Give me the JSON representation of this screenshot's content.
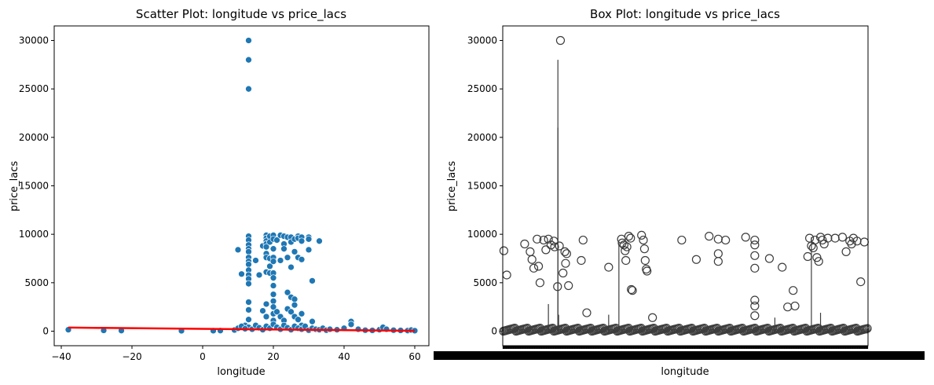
{
  "chart_data": [
    {
      "type": "scatter",
      "title": "Scatter Plot: longitude vs price_lacs",
      "xlabel": "longitude",
      "ylabel": "price_lacs",
      "xlim": [
        -42,
        64
      ],
      "ylim": [
        -1500,
        31500
      ],
      "xticks": [
        -40,
        -20,
        0,
        20,
        40,
        60
      ],
      "yticks": [
        0,
        5000,
        10000,
        15000,
        20000,
        25000,
        30000
      ],
      "grid": false,
      "point_color": "#1f77b4",
      "points": [
        [
          -38,
          150
        ],
        [
          -28,
          80
        ],
        [
          -23,
          60
        ],
        [
          -6,
          40
        ],
        [
          3,
          50
        ],
        [
          5,
          60
        ],
        [
          13,
          30000
        ],
        [
          13,
          28000
        ],
        [
          13,
          25000
        ],
        [
          10,
          8400
        ],
        [
          11,
          5900
        ],
        [
          12,
          600
        ],
        [
          13,
          9800
        ],
        [
          13,
          9400
        ],
        [
          13,
          8900
        ],
        [
          13,
          8500
        ],
        [
          13,
          8200
        ],
        [
          13,
          7600
        ],
        [
          13,
          7200
        ],
        [
          13,
          6900
        ],
        [
          13,
          6300
        ],
        [
          13,
          5800
        ],
        [
          13,
          5400
        ],
        [
          13,
          4900
        ],
        [
          13,
          3000
        ],
        [
          13,
          2200
        ],
        [
          13,
          1200
        ],
        [
          13,
          400
        ],
        [
          15,
          7300
        ],
        [
          16,
          5800
        ],
        [
          17,
          8800
        ],
        [
          17,
          2100
        ],
        [
          18,
          9900
        ],
        [
          18,
          9600
        ],
        [
          18,
          9300
        ],
        [
          18,
          9000
        ],
        [
          18,
          8700
        ],
        [
          18,
          8000
        ],
        [
          18,
          7600
        ],
        [
          18,
          6100
        ],
        [
          18,
          2800
        ],
        [
          18,
          1500
        ],
        [
          19,
          9800
        ],
        [
          19,
          9200
        ],
        [
          19,
          7500
        ],
        [
          19,
          6700
        ],
        [
          19,
          6000
        ],
        [
          20,
          9900
        ],
        [
          20,
          9500
        ],
        [
          20,
          8500
        ],
        [
          20,
          7600
        ],
        [
          20,
          7200
        ],
        [
          20,
          6000
        ],
        [
          20,
          5500
        ],
        [
          20,
          4700
        ],
        [
          20,
          3800
        ],
        [
          20,
          3100
        ],
        [
          20,
          2500
        ],
        [
          20,
          1800
        ],
        [
          20,
          1100
        ],
        [
          21,
          9400
        ],
        [
          21,
          2000
        ],
        [
          22,
          9900
        ],
        [
          22,
          7300
        ],
        [
          22,
          1500
        ],
        [
          23,
          9800
        ],
        [
          23,
          9000
        ],
        [
          23,
          8500
        ],
        [
          23,
          1100
        ],
        [
          24,
          9700
        ],
        [
          24,
          7600
        ],
        [
          24,
          4000
        ],
        [
          24,
          2300
        ],
        [
          25,
          9700
        ],
        [
          25,
          9200
        ],
        [
          25,
          6600
        ],
        [
          25,
          3500
        ],
        [
          25,
          2000
        ],
        [
          26,
          9500
        ],
        [
          26,
          8200
        ],
        [
          26,
          3300
        ],
        [
          26,
          2700
        ],
        [
          26,
          1500
        ],
        [
          27,
          9800
        ],
        [
          27,
          9600
        ],
        [
          27,
          7600
        ],
        [
          27,
          1200
        ],
        [
          28,
          9700
        ],
        [
          28,
          9300
        ],
        [
          28,
          7400
        ],
        [
          28,
          1800
        ],
        [
          28,
          600
        ],
        [
          30,
          9700
        ],
        [
          30,
          9500
        ],
        [
          30,
          8400
        ],
        [
          31,
          5200
        ],
        [
          31,
          1000
        ],
        [
          33,
          9300
        ],
        [
          9,
          120
        ],
        [
          10,
          300
        ],
        [
          11,
          500
        ],
        [
          12,
          250
        ],
        [
          14,
          200
        ],
        [
          15,
          600
        ],
        [
          16,
          350
        ],
        [
          17,
          150
        ],
        [
          18,
          500
        ],
        [
          19,
          300
        ],
        [
          20,
          700
        ],
        [
          21,
          400
        ],
        [
          22,
          200
        ],
        [
          23,
          600
        ],
        [
          24,
          350
        ],
        [
          25,
          150
        ],
        [
          26,
          500
        ],
        [
          27,
          300
        ],
        [
          28,
          200
        ],
        [
          29,
          500
        ],
        [
          30,
          100
        ],
        [
          31,
          300
        ],
        [
          32,
          200
        ],
        [
          33,
          150
        ],
        [
          34,
          300
        ],
        [
          35,
          100
        ],
        [
          36,
          200
        ],
        [
          38,
          150
        ],
        [
          40,
          300
        ],
        [
          42,
          1000
        ],
        [
          42,
          700
        ],
        [
          44,
          200
        ],
        [
          46,
          100
        ],
        [
          48,
          80
        ],
        [
          50,
          150
        ],
        [
          51,
          400
        ],
        [
          52,
          200
        ],
        [
          54,
          100
        ],
        [
          56,
          80
        ],
        [
          58,
          60
        ],
        [
          59,
          120
        ],
        [
          60,
          50
        ]
      ],
      "trendline": {
        "color": "#ff0000",
        "x": [
          -38,
          60
        ],
        "y": [
          370,
          40
        ]
      }
    },
    {
      "type": "box",
      "title": "Box Plot: longitude vs price_lacs",
      "xlabel": "longitude",
      "ylabel": "price_lacs",
      "ylim": [
        -1500,
        31500
      ],
      "yticks": [
        0,
        5000,
        10000,
        15000,
        20000,
        25000,
        30000
      ],
      "grid": false,
      "category_count_approx": 620,
      "box_color": "#3d3d3d",
      "whiskers": [
        {
          "pos": 0.151,
          "low": 0,
          "high": 28000
        },
        {
          "pos": 0.151,
          "low": 0,
          "high": 21000
        },
        {
          "pos": 0.125,
          "low": 0,
          "high": 2800
        },
        {
          "pos": 0.318,
          "low": 0,
          "high": 9100
        },
        {
          "pos": 0.29,
          "low": 0,
          "high": 1700
        },
        {
          "pos": 0.845,
          "low": 0,
          "high": 9700
        },
        {
          "pos": 0.153,
          "low": 0,
          "high": 1700
        },
        {
          "pos": 0.745,
          "low": 0,
          "high": 1400
        },
        {
          "pos": 0.87,
          "low": 0,
          "high": 1900
        }
      ],
      "outliers": [
        [
          0.003,
          8300
        ],
        [
          0.011,
          5800
        ],
        [
          0.06,
          9000
        ],
        [
          0.075,
          8200
        ],
        [
          0.08,
          7400
        ],
        [
          0.085,
          6500
        ],
        [
          0.094,
          9500
        ],
        [
          0.098,
          6700
        ],
        [
          0.102,
          5000
        ],
        [
          0.112,
          9400
        ],
        [
          0.118,
          8400
        ],
        [
          0.125,
          9500
        ],
        [
          0.132,
          8900
        ],
        [
          0.14,
          9300
        ],
        [
          0.142,
          8700
        ],
        [
          0.15,
          4600
        ],
        [
          0.155,
          8800
        ],
        [
          0.165,
          6000
        ],
        [
          0.17,
          8200
        ],
        [
          0.172,
          7000
        ],
        [
          0.175,
          8000
        ],
        [
          0.18,
          4700
        ],
        [
          0.158,
          30000
        ],
        [
          0.215,
          7300
        ],
        [
          0.22,
          9400
        ],
        [
          0.23,
          1900
        ],
        [
          0.29,
          6600
        ],
        [
          0.325,
          9500
        ],
        [
          0.327,
          9100
        ],
        [
          0.332,
          8900
        ],
        [
          0.335,
          8300
        ],
        [
          0.337,
          7300
        ],
        [
          0.34,
          8700
        ],
        [
          0.345,
          9800
        ],
        [
          0.35,
          9600
        ],
        [
          0.352,
          4300
        ],
        [
          0.355,
          4200
        ],
        [
          0.38,
          9900
        ],
        [
          0.385,
          9400
        ],
        [
          0.388,
          8500
        ],
        [
          0.39,
          7300
        ],
        [
          0.393,
          6400
        ],
        [
          0.395,
          6200
        ],
        [
          0.41,
          1400
        ],
        [
          0.49,
          9400
        ],
        [
          0.53,
          7400
        ],
        [
          0.565,
          9800
        ],
        [
          0.59,
          9500
        ],
        [
          0.59,
          8000
        ],
        [
          0.59,
          7200
        ],
        [
          0.61,
          9400
        ],
        [
          0.665,
          9700
        ],
        [
          0.69,
          9400
        ],
        [
          0.69,
          8900
        ],
        [
          0.69,
          7800
        ],
        [
          0.69,
          6500
        ],
        [
          0.69,
          3200
        ],
        [
          0.69,
          2600
        ],
        [
          0.69,
          1600
        ],
        [
          0.73,
          7500
        ],
        [
          0.765,
          6600
        ],
        [
          0.78,
          2500
        ],
        [
          0.795,
          4200
        ],
        [
          0.8,
          2600
        ],
        [
          0.835,
          7700
        ],
        [
          0.84,
          9600
        ],
        [
          0.845,
          8800
        ],
        [
          0.85,
          8600
        ],
        [
          0.855,
          9400
        ],
        [
          0.86,
          7600
        ],
        [
          0.865,
          7200
        ],
        [
          0.87,
          9700
        ],
        [
          0.875,
          9400
        ],
        [
          0.88,
          9000
        ],
        [
          0.89,
          9600
        ],
        [
          0.91,
          9600
        ],
        [
          0.93,
          9700
        ],
        [
          0.94,
          8200
        ],
        [
          0.95,
          9300
        ],
        [
          0.955,
          9000
        ],
        [
          0.96,
          9600
        ],
        [
          0.97,
          9300
        ],
        [
          0.98,
          5100
        ],
        [
          0.99,
          9200
        ]
      ]
    }
  ]
}
